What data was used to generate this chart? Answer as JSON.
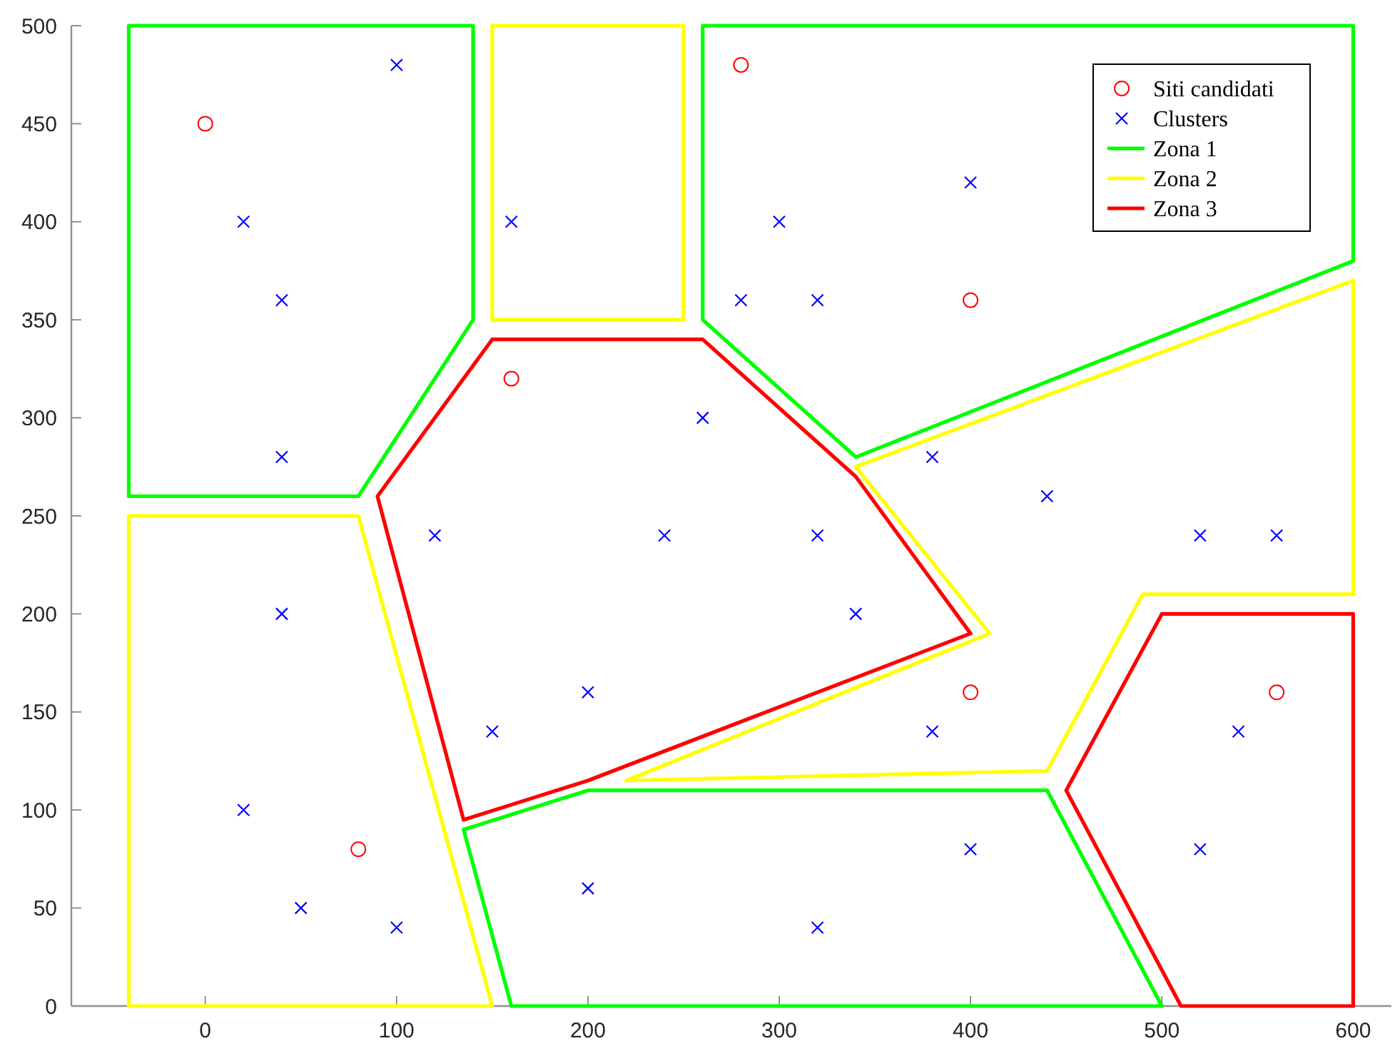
{
  "chart_data": {
    "type": "scatter",
    "xlim": [
      -70,
      620
    ],
    "ylim": [
      0,
      500
    ],
    "xticks": [
      0,
      100,
      200,
      300,
      400,
      500,
      600
    ],
    "yticks": [
      0,
      50,
      100,
      150,
      200,
      250,
      300,
      350,
      400,
      450,
      500
    ],
    "legend": "top right",
    "series": [
      {
        "name": "Siti candidati",
        "marker": "circle",
        "color": "#ff0000",
        "x": [
          0,
          160,
          280,
          400,
          80,
          400,
          560
        ],
        "values": [
          450,
          320,
          480,
          360,
          80,
          160,
          160
        ]
      },
      {
        "name": "Clusters",
        "marker": "cross",
        "color": "#0000ff",
        "x": [
          100,
          20,
          40,
          40,
          160,
          260,
          400,
          300,
          280,
          320,
          380,
          440,
          120,
          240,
          40,
          200,
          150,
          20,
          50,
          100,
          200,
          320,
          340,
          380,
          400,
          320,
          520,
          560,
          540,
          520
        ],
        "values": [
          480,
          400,
          360,
          280,
          400,
          300,
          420,
          400,
          360,
          360,
          280,
          260,
          240,
          240,
          200,
          160,
          140,
          100,
          50,
          40,
          60,
          240,
          200,
          140,
          80,
          40,
          240,
          240,
          140,
          80
        ]
      },
      {
        "name": "Zona 1",
        "type": "line",
        "color": "#00ff00",
        "x": [
          -40,
          140,
          140,
          null,
          140,
          80,
          -40,
          -40,
          null,
          260,
          260,
          340,
          null,
          340,
          600,
          600,
          260,
          null,
          135,
          200,
          440,
          null,
          440,
          500,
          160,
          135
        ],
        "values": [
          500,
          500,
          350,
          null,
          350,
          260,
          260,
          500,
          null,
          500,
          350,
          280,
          null,
          280,
          380,
          500,
          500,
          null,
          90,
          110,
          110,
          null,
          110,
          0,
          0,
          90
        ]
      },
      {
        "name": "Zona 2",
        "type": "line",
        "color": "#ffff00",
        "x": [
          150,
          250,
          250,
          null,
          250,
          150,
          150,
          null,
          -40,
          80,
          150,
          null,
          150,
          -40,
          -40,
          null,
          600,
          600,
          490,
          440,
          null,
          440,
          220,
          410,
          340,
          600
        ],
        "values": [
          500,
          500,
          350,
          null,
          350,
          350,
          500,
          null,
          250,
          250,
          0,
          null,
          0,
          0,
          250,
          null,
          370,
          210,
          210,
          120,
          null,
          120,
          115,
          190,
          275,
          370
        ]
      },
      {
        "name": "Zona 3",
        "type": "line",
        "color": "#ff0000",
        "x": [
          150,
          260,
          340,
          400,
          null,
          400,
          200,
          135,
          90,
          150,
          null,
          500,
          600,
          600,
          null,
          600,
          510,
          450,
          500
        ],
        "values": [
          340,
          340,
          270,
          190,
          null,
          190,
          115,
          95,
          260,
          340,
          null,
          200,
          200,
          0,
          null,
          0,
          0,
          110,
          200
        ]
      }
    ]
  }
}
